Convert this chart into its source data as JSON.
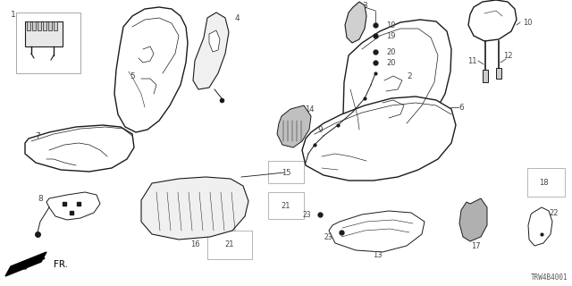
{
  "bg_color": "#ffffff",
  "lc": "#1a1a1a",
  "label_color": "#444444",
  "diagram_code": "TRW4B4001",
  "figsize": [
    6.4,
    3.2
  ],
  "dpi": 100
}
